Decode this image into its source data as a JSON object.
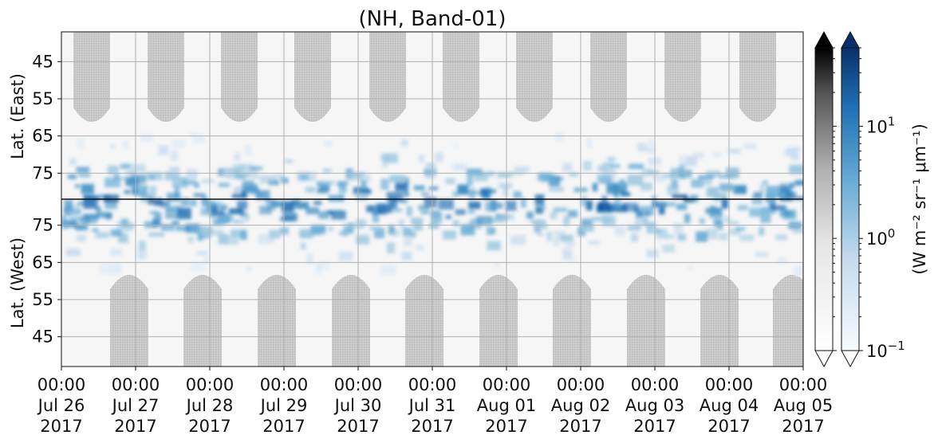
{
  "chart_data": {
    "type": "heatmap",
    "title": "(NH, Band-01)",
    "y_labels": {
      "east": "Lat. (East)",
      "west": "Lat. (West)"
    },
    "y_ticks": {
      "east": [
        "45",
        "55",
        "65",
        "75"
      ],
      "west": [
        "75",
        "65",
        "55",
        "45"
      ]
    },
    "x_ticks": [
      {
        "time": "00:00",
        "date": "Jul 26",
        "year": "2017"
      },
      {
        "time": "00:00",
        "date": "Jul 27",
        "year": "2017"
      },
      {
        "time": "00:00",
        "date": "Jul 28",
        "year": "2017"
      },
      {
        "time": "00:00",
        "date": "Jul 29",
        "year": "2017"
      },
      {
        "time": "00:00",
        "date": "Jul 30",
        "year": "2017"
      },
      {
        "time": "00:00",
        "date": "Jul 31",
        "year": "2017"
      },
      {
        "time": "00:00",
        "date": "Aug 01",
        "year": "2017"
      },
      {
        "time": "00:00",
        "date": "Aug 02",
        "year": "2017"
      },
      {
        "time": "00:00",
        "date": "Aug 03",
        "year": "2017"
      },
      {
        "time": "00:00",
        "date": "Aug 04",
        "year": "2017"
      },
      {
        "time": "00:00",
        "date": "Aug 05",
        "year": "2017"
      }
    ],
    "colorbar": {
      "label": "(W m⁻² sr⁻¹ μm⁻¹)",
      "scale": "log",
      "range": [
        0.1,
        50
      ],
      "ticks": [
        {
          "value": 10,
          "base": "10",
          "exp": "1"
        },
        {
          "value": 1,
          "base": "10",
          "exp": "0"
        },
        {
          "value": 0.1,
          "base": "10",
          "exp": "−1"
        }
      ],
      "cmaps": [
        "Greys",
        "Blues"
      ],
      "extend": "both"
    },
    "grid": true,
    "colors": {
      "no_data": "#c6c6c6",
      "blue_dark": "#08306b",
      "blue_mid": "#2171b5",
      "blue_light": "#c6dbef",
      "grey_dark": "#000000"
    }
  }
}
